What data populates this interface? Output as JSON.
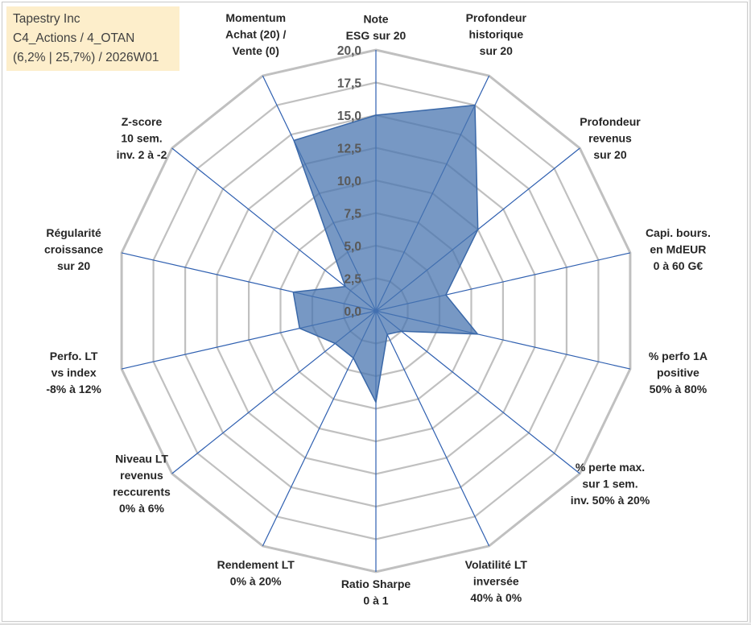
{
  "info": {
    "company": "Tapestry Inc",
    "portfolio": "C4_Actions / 4_OTAN",
    "stats": "(6,2% | 25,7%) / 2026W01"
  },
  "colors": {
    "fill": "#4a76b0",
    "fill_opacity": 0.75,
    "stroke": "#3a68a8",
    "spoke": "#2e5fb0",
    "grid": "#c0c0c0",
    "info_bg": "#fdeecb"
  },
  "chart_data": {
    "type": "radar",
    "scale": {
      "min": 0,
      "max": 20,
      "step": 2.5
    },
    "tick_labels": [
      "0,0",
      "2,5",
      "5,0",
      "7,5",
      "10,0",
      "12,5",
      "15,0",
      "17,5",
      "20,0"
    ],
    "axes": [
      {
        "label": [
          "Note",
          "ESG sur 20"
        ],
        "value": 15.0
      },
      {
        "label": [
          "Profondeur",
          "historique",
          "sur 20"
        ],
        "value": 17.5
      },
      {
        "label": [
          "Profondeur",
          "revenus",
          "sur 20"
        ],
        "value": 10.0
      },
      {
        "label": [
          "Capi. bours.",
          "en MdEUR",
          "0 à 60 G€"
        ],
        "value": 5.5
      },
      {
        "label": [
          "% perfo 1A",
          "positive",
          "50% à 80%"
        ],
        "value": 8.0
      },
      {
        "label": [
          "% perte max.",
          "sur 1 sem.",
          "inv. 50% à 20%"
        ],
        "value": 2.5
      },
      {
        "label": [
          "Volatilité LT",
          "inversée",
          "40% à 0%"
        ],
        "value": 2.0
      },
      {
        "label": [
          "Ratio Sharpe",
          "0 à 1"
        ],
        "value": 7.0
      },
      {
        "label": [
          "Rendement LT",
          "0% à 20%"
        ],
        "value": 4.0
      },
      {
        "label": [
          "Niveau LT",
          "revenus",
          "reccurents",
          "0% à 6%"
        ],
        "value": 4.0
      },
      {
        "label": [
          "Perfo. LT",
          "vs index",
          "-8% à 12%"
        ],
        "value": 6.0
      },
      {
        "label": [
          "Régularité",
          "croissance",
          "sur 20"
        ],
        "value": 6.5
      },
      {
        "label": [
          "Z-score",
          "10 sem.",
          "inv. 2 à -2"
        ],
        "value": 3.0
      },
      {
        "label": [
          "Momentum",
          "Achat (20) /",
          "Vente (0)"
        ],
        "value": 14.5
      }
    ]
  }
}
